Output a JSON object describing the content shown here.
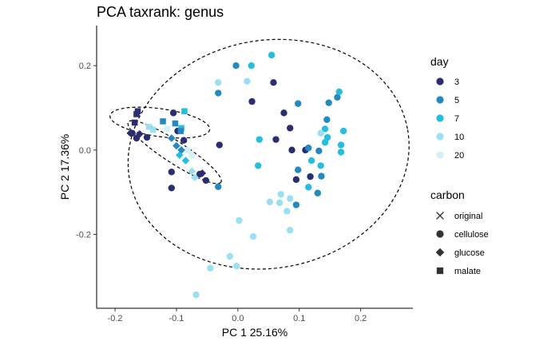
{
  "chart_data": {
    "type": "scatter",
    "title": "PCA taxrank: genus",
    "xlabel": "PC 1 25.16%",
    "ylabel": "PC 2 17.36%",
    "xlim": [
      -0.23,
      0.285
    ],
    "ylim": [
      -0.375,
      0.295
    ],
    "x_ticks": [
      -0.2,
      -0.1,
      0.0,
      0.1,
      0.2
    ],
    "x_tick_labels": [
      "-0.2",
      "-0.1",
      "0.0",
      "0.1",
      "0.2"
    ],
    "y_ticks": [
      -0.2,
      0.0,
      0.2
    ],
    "y_tick_labels": [
      "-0.2",
      "0.0",
      "0.2"
    ],
    "grid": false,
    "legend_placement": "right",
    "legends": {
      "day": {
        "title": "day",
        "entries": [
          {
            "label": "3",
            "color": "#2b2c72"
          },
          {
            "label": "5",
            "color": "#2389bf"
          },
          {
            "label": "7",
            "color": "#26bedd"
          },
          {
            "label": "10",
            "color": "#9be0f2"
          },
          {
            "label": "20",
            "color": "#d4f1f9"
          }
        ]
      },
      "carbon": {
        "title": "carbon",
        "entries": [
          {
            "label": "original",
            "shape": "cross"
          },
          {
            "label": "cellulose",
            "shape": "circle"
          },
          {
            "label": "glucose",
            "shape": "diamond"
          },
          {
            "label": "malate",
            "shape": "square"
          }
        ]
      }
    },
    "ellipses": [
      {
        "name": "cellulose",
        "cx": 0.05,
        "cy": -0.01,
        "rx": 0.23,
        "ry": 0.27,
        "angle": 10
      },
      {
        "name": "malate",
        "cx": -0.127,
        "cy": 0.065,
        "rx": 0.082,
        "ry": 0.033,
        "angle": -8
      },
      {
        "name": "glucose",
        "cx": -0.103,
        "cy": -0.005,
        "rx": 0.09,
        "ry": 0.026,
        "angle": -33
      }
    ],
    "points": [
      {
        "x": -0.105,
        "y": 0.088,
        "day": "3",
        "carbon": "cellulose"
      },
      {
        "x": -0.098,
        "y": 0.045,
        "day": "3",
        "carbon": "cellulose"
      },
      {
        "x": -0.088,
        "y": 0.023,
        "day": "3",
        "carbon": "cellulose"
      },
      {
        "x": -0.03,
        "y": 0.012,
        "day": "3",
        "carbon": "cellulose"
      },
      {
        "x": 0.023,
        "y": 0.115,
        "day": "3",
        "carbon": "cellulose"
      },
      {
        "x": 0.058,
        "y": 0.16,
        "day": "3",
        "carbon": "cellulose"
      },
      {
        "x": 0.075,
        "y": 0.088,
        "day": "3",
        "carbon": "cellulose"
      },
      {
        "x": 0.085,
        "y": 0.052,
        "day": "3",
        "carbon": "cellulose"
      },
      {
        "x": 0.062,
        "y": 0.025,
        "day": "3",
        "carbon": "cellulose"
      },
      {
        "x": 0.088,
        "y": 0.0,
        "day": "3",
        "carbon": "cellulose"
      },
      {
        "x": 0.11,
        "y": 0.0,
        "day": "3",
        "carbon": "cellulose"
      },
      {
        "x": 0.118,
        "y": -0.063,
        "day": "3",
        "carbon": "cellulose"
      },
      {
        "x": 0.095,
        "y": -0.07,
        "day": "3",
        "carbon": "cellulose"
      },
      {
        "x": -0.108,
        "y": -0.052,
        "day": "3",
        "carbon": "cellulose"
      },
      {
        "x": -0.108,
        "y": -0.09,
        "day": "3",
        "carbon": "cellulose"
      },
      {
        "x": -0.062,
        "y": -0.057,
        "day": "3",
        "carbon": "cellulose"
      },
      {
        "x": -0.052,
        "y": -0.072,
        "day": "3",
        "carbon": "cellulose"
      },
      {
        "x": 0.115,
        "y": 0.005,
        "day": "5",
        "carbon": "cellulose"
      },
      {
        "x": -0.003,
        "y": 0.2,
        "day": "5",
        "carbon": "cellulose"
      },
      {
        "x": -0.032,
        "y": 0.135,
        "day": "5",
        "carbon": "cellulose"
      },
      {
        "x": 0.098,
        "y": 0.11,
        "day": "5",
        "carbon": "cellulose"
      },
      {
        "x": 0.148,
        "y": 0.112,
        "day": "5",
        "carbon": "cellulose"
      },
      {
        "x": 0.162,
        "y": 0.125,
        "day": "5",
        "carbon": "cellulose"
      },
      {
        "x": 0.145,
        "y": 0.072,
        "day": "5",
        "carbon": "cellulose"
      },
      {
        "x": 0.132,
        "y": -0.002,
        "day": "5",
        "carbon": "cellulose"
      },
      {
        "x": 0.098,
        "y": -0.047,
        "day": "5",
        "carbon": "cellulose"
      },
      {
        "x": 0.136,
        "y": -0.062,
        "day": "5",
        "carbon": "cellulose"
      },
      {
        "x": 0.13,
        "y": -0.102,
        "day": "5",
        "carbon": "cellulose"
      },
      {
        "x": 0.095,
        "y": -0.13,
        "day": "5",
        "carbon": "cellulose"
      },
      {
        "x": -0.032,
        "y": -0.087,
        "day": "5",
        "carbon": "cellulose"
      },
      {
        "x": 0.022,
        "y": 0.2,
        "day": "7",
        "carbon": "cellulose"
      },
      {
        "x": 0.055,
        "y": 0.225,
        "day": "7",
        "carbon": "cellulose"
      },
      {
        "x": 0.165,
        "y": 0.138,
        "day": "7",
        "carbon": "cellulose"
      },
      {
        "x": 0.172,
        "y": 0.045,
        "day": "7",
        "carbon": "cellulose"
      },
      {
        "x": 0.142,
        "y": 0.05,
        "day": "7",
        "carbon": "cellulose"
      },
      {
        "x": 0.146,
        "y": 0.03,
        "day": "7",
        "carbon": "cellulose"
      },
      {
        "x": 0.142,
        "y": 0.018,
        "day": "7",
        "carbon": "cellulose"
      },
      {
        "x": 0.168,
        "y": 0.012,
        "day": "7",
        "carbon": "cellulose"
      },
      {
        "x": 0.168,
        "y": -0.005,
        "day": "7",
        "carbon": "cellulose"
      },
      {
        "x": 0.12,
        "y": -0.025,
        "day": "7",
        "carbon": "cellulose"
      },
      {
        "x": 0.035,
        "y": 0.025,
        "day": "7",
        "carbon": "cellulose"
      },
      {
        "x": 0.033,
        "y": -0.037,
        "day": "7",
        "carbon": "cellulose"
      },
      {
        "x": 0.135,
        "y": -0.037,
        "day": "7",
        "carbon": "cellulose"
      },
      {
        "x": 0.115,
        "y": -0.088,
        "day": "7",
        "carbon": "cellulose"
      },
      {
        "x": -0.032,
        "y": 0.16,
        "day": "10",
        "carbon": "cellulose"
      },
      {
        "x": 0.015,
        "y": 0.163,
        "day": "10",
        "carbon": "cellulose"
      },
      {
        "x": 0.135,
        "y": 0.04,
        "day": "10",
        "carbon": "cellulose"
      },
      {
        "x": 0.07,
        "y": -0.105,
        "day": "10",
        "carbon": "cellulose"
      },
      {
        "x": 0.085,
        "y": -0.115,
        "day": "10",
        "carbon": "cellulose"
      },
      {
        "x": 0.068,
        "y": -0.125,
        "day": "10",
        "carbon": "cellulose"
      },
      {
        "x": 0.052,
        "y": -0.123,
        "day": "10",
        "carbon": "cellulose"
      },
      {
        "x": 0.08,
        "y": -0.145,
        "day": "10",
        "carbon": "cellulose"
      },
      {
        "x": 0.085,
        "y": -0.19,
        "day": "10",
        "carbon": "cellulose"
      },
      {
        "x": 0.002,
        "y": -0.167,
        "day": "10",
        "carbon": "cellulose"
      },
      {
        "x": 0.025,
        "y": -0.205,
        "day": "10",
        "carbon": "cellulose"
      },
      {
        "x": -0.013,
        "y": -0.252,
        "day": "10",
        "carbon": "cellulose"
      },
      {
        "x": -0.002,
        "y": -0.275,
        "day": "10",
        "carbon": "cellulose"
      },
      {
        "x": -0.045,
        "y": -0.28,
        "day": "10",
        "carbon": "cellulose"
      },
      {
        "x": -0.068,
        "y": -0.343,
        "day": "10",
        "carbon": "cellulose"
      },
      {
        "x": -0.082,
        "y": 0.0,
        "day": "20",
        "carbon": "cellulose"
      },
      {
        "x": -0.075,
        "y": -0.012,
        "day": "20",
        "carbon": "cellulose"
      },
      {
        "x": -0.172,
        "y": 0.04,
        "day": "3",
        "carbon": "cellulose"
      },
      {
        "x": -0.165,
        "y": 0.028,
        "day": "3",
        "carbon": "cellulose"
      },
      {
        "x": -0.148,
        "y": 0.03,
        "day": "3",
        "carbon": "cellulose"
      },
      {
        "x": -0.165,
        "y": 0.085,
        "day": "3",
        "carbon": "square"
      },
      {
        "x": -0.163,
        "y": 0.092,
        "day": "3",
        "carbon": "malate"
      },
      {
        "x": -0.168,
        "y": 0.065,
        "day": "3",
        "carbon": "malate"
      },
      {
        "x": -0.145,
        "y": 0.055,
        "day": "10",
        "carbon": "malate"
      },
      {
        "x": -0.138,
        "y": 0.048,
        "day": "10",
        "carbon": "malate"
      },
      {
        "x": -0.122,
        "y": 0.068,
        "day": "5",
        "carbon": "malate"
      },
      {
        "x": -0.115,
        "y": 0.05,
        "day": "20",
        "carbon": "malate"
      },
      {
        "x": -0.102,
        "y": 0.063,
        "day": "5",
        "carbon": "malate"
      },
      {
        "x": -0.092,
        "y": 0.052,
        "day": "7",
        "carbon": "malate"
      },
      {
        "x": -0.087,
        "y": 0.092,
        "day": "7",
        "carbon": "malate"
      },
      {
        "x": -0.093,
        "y": 0.045,
        "day": "5",
        "carbon": "malate"
      },
      {
        "x": -0.175,
        "y": 0.04,
        "day": "3",
        "carbon": "glucose"
      },
      {
        "x": -0.16,
        "y": 0.038,
        "day": "3",
        "carbon": "glucose"
      },
      {
        "x": -0.108,
        "y": 0.028,
        "day": "5",
        "carbon": "glucose"
      },
      {
        "x": -0.1,
        "y": 0.01,
        "day": "5",
        "carbon": "glucose"
      },
      {
        "x": -0.092,
        "y": 0.0,
        "day": "5",
        "carbon": "glucose"
      },
      {
        "x": -0.095,
        "y": -0.012,
        "day": "7",
        "carbon": "glucose"
      },
      {
        "x": -0.085,
        "y": -0.025,
        "day": "7",
        "carbon": "glucose"
      },
      {
        "x": -0.075,
        "y": -0.05,
        "day": "10",
        "carbon": "glucose"
      },
      {
        "x": -0.07,
        "y": -0.065,
        "day": "10",
        "carbon": "glucose"
      },
      {
        "x": -0.058,
        "y": -0.055,
        "day": "3",
        "carbon": "glucose"
      }
    ]
  }
}
